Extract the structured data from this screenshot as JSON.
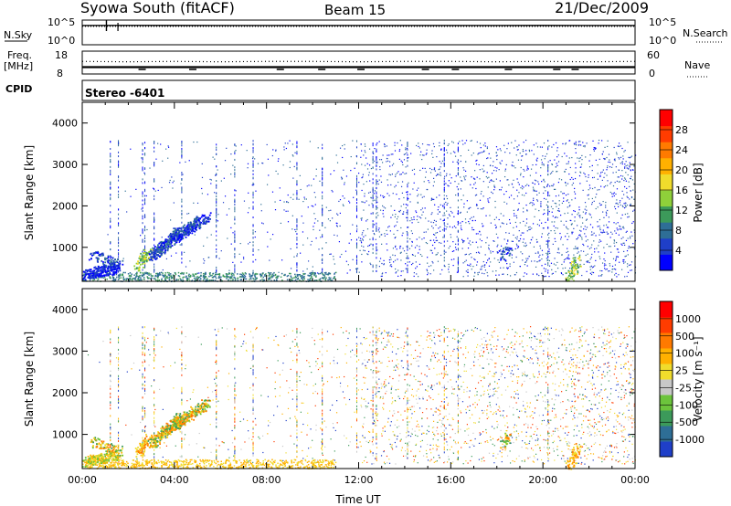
{
  "header": {
    "station": "Syowa South (fitACF)",
    "beam": "Beam 15",
    "date": "21/Dec/2009"
  },
  "chart_data": [
    {
      "type": "line",
      "panel": "noise",
      "left_label": "N.Sky",
      "right_label": "N.Search",
      "left_ticks": [
        "10^5",
        "10^0"
      ],
      "right_ticks": [
        "10^5",
        "10^0"
      ],
      "scale": "log",
      "ylim": [
        1,
        100000
      ],
      "x": [
        0,
        2,
        4,
        6,
        8,
        10,
        12,
        14,
        16,
        18,
        20,
        22,
        24
      ],
      "series": [
        {
          "values": [
            8000,
            8500,
            8200,
            8000,
            7800,
            8000,
            8100,
            8000,
            7900,
            8000,
            8200,
            8000,
            8000
          ]
        },
        {
          "values": [
            5000,
            5200,
            5100,
            5000,
            4900,
            5000,
            5100,
            5000,
            5000,
            5100,
            5200,
            5000,
            5000
          ]
        }
      ]
    },
    {
      "type": "line",
      "panel": "frequency",
      "left_label_top": "Freq.",
      "left_label_bottom": "[MHz]",
      "right_label": "Nave",
      "left_ticks": [
        "18",
        "8"
      ],
      "right_ticks": [
        "60",
        "0"
      ],
      "freq_ylim": [
        8,
        18
      ],
      "nave_ylim": [
        0,
        60
      ],
      "x": [
        0,
        2,
        4,
        6,
        8,
        10,
        12,
        14,
        16,
        18,
        20,
        22,
        24
      ],
      "series": [
        {
          "values": [
            11,
            11,
            11,
            11,
            11,
            11,
            11,
            11,
            11,
            11,
            11,
            11,
            11
          ]
        },
        {
          "values": [
            33,
            32,
            33,
            32,
            33,
            33,
            32,
            33,
            33,
            32,
            33,
            32,
            33
          ]
        }
      ]
    },
    {
      "type": "text",
      "panel": "cpid",
      "label": "CPID",
      "value": "Stereo -6401"
    },
    {
      "type": "heatmap",
      "panel": "power",
      "ylabel": "Slant Range [km]",
      "ylim": [
        180,
        4500
      ],
      "yticks": [
        1000,
        2000,
        3000,
        4000
      ],
      "xlim": [
        0,
        24
      ],
      "colorbar_label": "Power [dB]",
      "colorbar_ticks": [
        "28",
        "24",
        "20",
        "16",
        "12",
        "8",
        "4"
      ],
      "colors": [
        "#0000ff",
        "#1f3fc8",
        "#2e6e96",
        "#3c9a5a",
        "#8fd03a",
        "#f0dc2c",
        "#ffb000",
        "#ff7a00",
        "#ff3c00",
        "#ff0000"
      ]
    },
    {
      "type": "heatmap",
      "panel": "velocity",
      "ylabel": "Slant Range [km]",
      "xlabel": "Time UT",
      "ylim": [
        180,
        4500
      ],
      "yticks": [
        1000,
        2000,
        3000,
        4000
      ],
      "xlim": [
        0,
        24
      ],
      "xticks": [
        "00:00",
        "04:00",
        "08:00",
        "12:00",
        "16:00",
        "20:00",
        "00:00"
      ],
      "colorbar_label": "Velocity [m s⁻¹]",
      "colorbar_ticks": [
        "1000",
        "500",
        "100",
        "25",
        "-25",
        "-100",
        "-500",
        "-1000"
      ],
      "colors": [
        "#1f3fc8",
        "#2e6e96",
        "#3c9a5a",
        "#6cc43c",
        "#c8c8c8",
        "#f0dc2c",
        "#ffb000",
        "#ff7a00",
        "#ff3c00",
        "#ff0000"
      ]
    }
  ]
}
